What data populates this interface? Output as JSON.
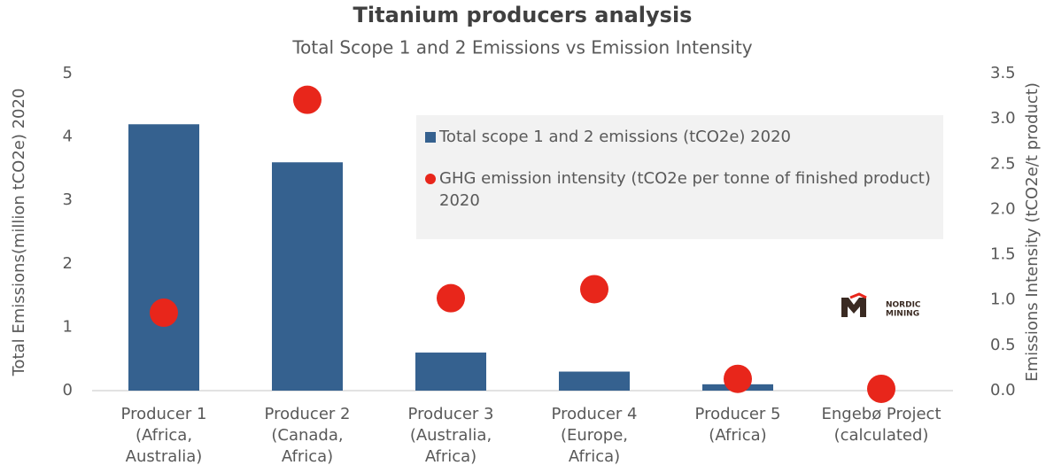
{
  "chart_data": {
    "type": "bar",
    "title": "Titanium producers analysis",
    "subtitle": "Total Scope 1 and 2 Emissions vs Emission Intensity",
    "ylabel": "Total Emissions(million tCO2e) 2020",
    "y2label": "Emissions Intensity (tCO2e/t product)",
    "categories": [
      [
        "Producer 1",
        "(Africa,",
        "Australia)"
      ],
      [
        "Producer 2",
        "(Canada,",
        "Africa)"
      ],
      [
        "Producer 3",
        "(Australia,",
        "Africa)"
      ],
      [
        "Producer 4",
        "(Europe,",
        "Africa)"
      ],
      [
        "Producer 5",
        "(Africa)"
      ],
      [
        "Engebø Project",
        "(calculated)"
      ]
    ],
    "series": [
      {
        "name": "Total scope 1 and 2 emissions (tCO2e) 2020",
        "type": "bar",
        "color": "#35618f",
        "values": [
          4.2,
          3.6,
          0.6,
          0.3,
          0.1,
          0
        ]
      },
      {
        "name": "GHG emission intensity (tCO2e per tonne of finished product) 2020",
        "type": "scatter",
        "axis": "y2",
        "color": "#e8261b",
        "values": [
          0.86,
          3.21,
          1.02,
          1.12,
          0.13,
          0.02
        ]
      }
    ],
    "ylim": [
      0,
      5
    ],
    "yticks": [
      0,
      1,
      2,
      3,
      4,
      5
    ],
    "y2lim": [
      0,
      3.5
    ],
    "y2ticks": [
      {
        "value": 0,
        "label": "0.0"
      },
      {
        "value": 0.5,
        "label": "0.5"
      },
      {
        "value": 1,
        "label": "1.0"
      },
      {
        "value": 1.5,
        "label": "1.5"
      },
      {
        "value": 2,
        "label": "2.0"
      },
      {
        "value": 2.5,
        "label": "2.5"
      },
      {
        "value": 3,
        "label": "3.0"
      },
      {
        "value": 3.5,
        "label": "3.5"
      }
    ],
    "legend": "upper right",
    "logo": [
      "NORDIC",
      "MINING"
    ]
  }
}
